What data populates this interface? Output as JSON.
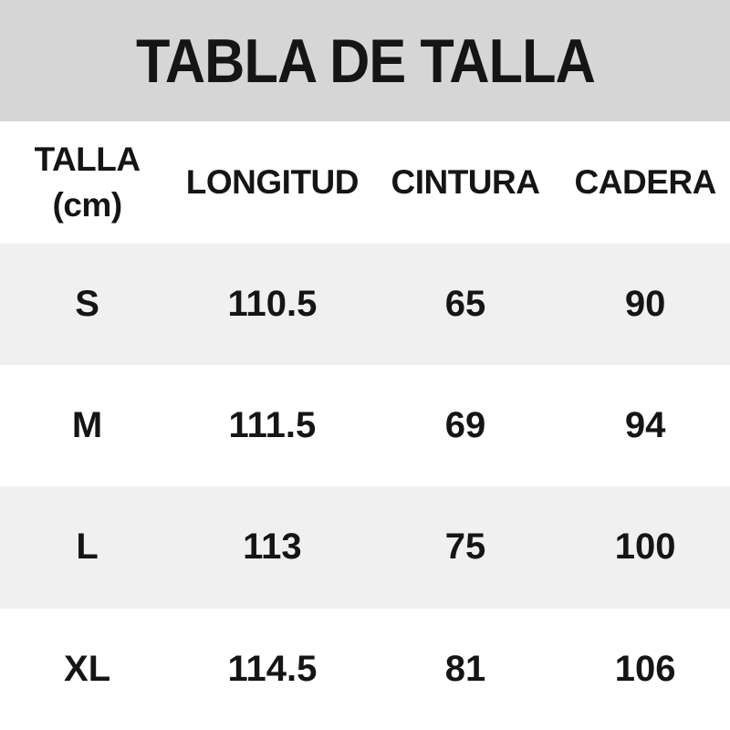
{
  "title": "TABLA DE TALLA",
  "colors": {
    "title_band": "#d6d6d6",
    "row_alt": "#f0f0f1",
    "row_white": "#ffffff",
    "text": "#151515"
  },
  "table": {
    "header": {
      "talla_line1": "TALLA",
      "talla_line2": "(cm)",
      "longitud": "LONGITUD",
      "cintura": "CINTURA",
      "cadera": "CADERA"
    },
    "rows": [
      {
        "talla": "S",
        "longitud": "110.5",
        "cintura": "65",
        "cadera": "90"
      },
      {
        "talla": "M",
        "longitud": "111.5",
        "cintura": "69",
        "cadera": "94"
      },
      {
        "talla": "L",
        "longitud": "113",
        "cintura": "75",
        "cadera": "100"
      },
      {
        "talla": "XL",
        "longitud": "114.5",
        "cintura": "81",
        "cadera": "106"
      }
    ]
  },
  "chart_data": {
    "type": "table",
    "title": "TABLA DE TALLA",
    "unit": "cm",
    "columns": [
      "TALLA (cm)",
      "LONGITUD",
      "CINTURA",
      "CADERA"
    ],
    "rows": [
      [
        "S",
        110.5,
        65,
        90
      ],
      [
        "M",
        111.5,
        69,
        94
      ],
      [
        "L",
        113,
        75,
        100
      ],
      [
        "XL",
        114.5,
        81,
        106
      ]
    ]
  }
}
